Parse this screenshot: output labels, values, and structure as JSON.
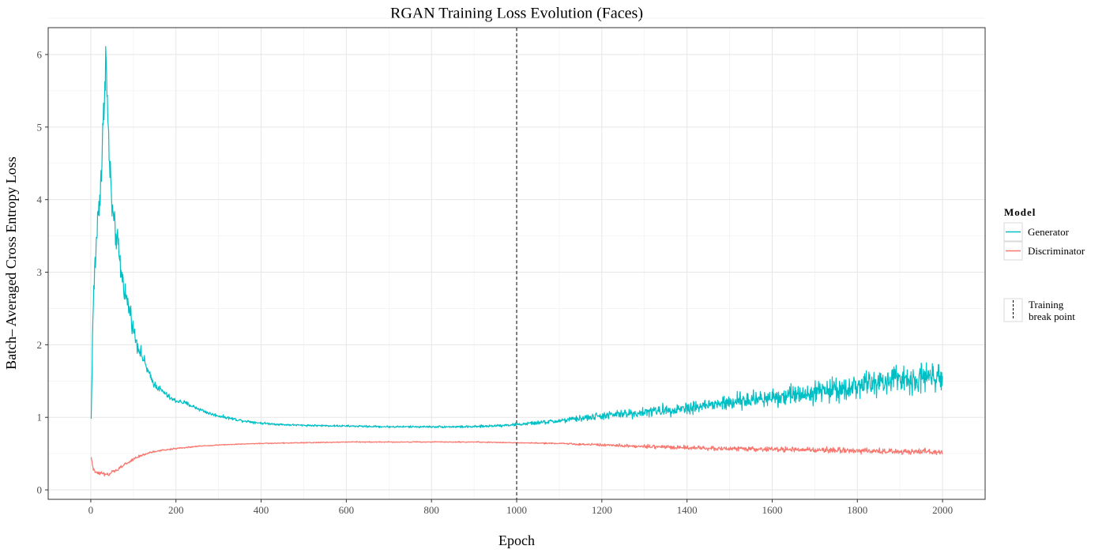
{
  "chart_data": {
    "type": "line",
    "title": "RGAN Training Loss Evolution (Faces)",
    "xlabel": "Epoch",
    "ylabel": "Batch– Averaged Cross Entropy Loss",
    "xlim": [
      -100,
      2100
    ],
    "ylim": [
      -0.13,
      6.37
    ],
    "x_ticks": [
      0,
      200,
      400,
      600,
      800,
      1000,
      1200,
      1400,
      1600,
      1800,
      2000
    ],
    "y_ticks": [
      0,
      1,
      2,
      3,
      4,
      5,
      6
    ],
    "grid": true,
    "legend_title": "Model",
    "legend_position": "right",
    "vline": {
      "x": 1000,
      "style": "dashed",
      "label_lines": [
        "Training",
        "break point"
      ]
    },
    "series": [
      {
        "name": "Generator",
        "color": "#00BFC4",
        "x": [
          1,
          5,
          10,
          15,
          20,
          25,
          30,
          35,
          40,
          45,
          50,
          55,
          60,
          65,
          70,
          75,
          80,
          85,
          90,
          95,
          100,
          110,
          120,
          130,
          140,
          150,
          160,
          170,
          180,
          190,
          200,
          220,
          240,
          260,
          280,
          300,
          350,
          400,
          450,
          500,
          600,
          700,
          800,
          900,
          1000,
          1100,
          1200,
          1300,
          1400,
          1500,
          1600,
          1700,
          1800,
          1900,
          1950,
          2000
        ],
        "values": [
          0.98,
          2.4,
          3.1,
          3.6,
          4.0,
          4.4,
          5.1,
          6.05,
          5.1,
          4.4,
          3.9,
          3.6,
          3.5,
          3.3,
          3.05,
          2.9,
          2.75,
          2.6,
          2.5,
          2.4,
          2.2,
          2.0,
          1.85,
          1.7,
          1.55,
          1.45,
          1.4,
          1.35,
          1.3,
          1.25,
          1.23,
          1.2,
          1.15,
          1.1,
          1.05,
          1.02,
          0.96,
          0.92,
          0.9,
          0.89,
          0.88,
          0.87,
          0.87,
          0.87,
          0.9,
          0.95,
          1.02,
          1.07,
          1.13,
          1.2,
          1.28,
          1.35,
          1.43,
          1.52,
          1.55,
          1.6
        ],
        "noise_amplitude": [
          0,
          0.3,
          0.4,
          0.4,
          0.45,
          0.5,
          0.5,
          0.45,
          0.45,
          0.4,
          0.4,
          0.35,
          0.3,
          0.3,
          0.3,
          0.25,
          0.25,
          0.22,
          0.2,
          0.2,
          0.18,
          0.15,
          0.13,
          0.11,
          0.09,
          0.08,
          0.07,
          0.06,
          0.06,
          0.05,
          0.05,
          0.05,
          0.04,
          0.04,
          0.035,
          0.03,
          0.03,
          0.025,
          0.02,
          0.02,
          0.02,
          0.02,
          0.02,
          0.025,
          0.03,
          0.05,
          0.08,
          0.1,
          0.13,
          0.16,
          0.2,
          0.22,
          0.26,
          0.3,
          0.32,
          0.3
        ]
      },
      {
        "name": "Discriminator",
        "color": "#F8766D",
        "x": [
          1,
          5,
          10,
          20,
          30,
          40,
          50,
          60,
          80,
          100,
          120,
          150,
          200,
          250,
          300,
          400,
          500,
          600,
          700,
          800,
          900,
          1000,
          1100,
          1200,
          1300,
          1400,
          1500,
          1600,
          1700,
          1800,
          1900,
          2000
        ],
        "values": [
          0.45,
          0.3,
          0.25,
          0.24,
          0.22,
          0.2,
          0.24,
          0.27,
          0.35,
          0.42,
          0.48,
          0.53,
          0.57,
          0.6,
          0.62,
          0.64,
          0.65,
          0.66,
          0.66,
          0.66,
          0.66,
          0.65,
          0.64,
          0.62,
          0.6,
          0.58,
          0.57,
          0.56,
          0.55,
          0.54,
          0.53,
          0.52
        ],
        "noise_amplitude": [
          0,
          0.05,
          0.04,
          0.04,
          0.04,
          0.04,
          0.04,
          0.04,
          0.03,
          0.03,
          0.025,
          0.02,
          0.015,
          0.012,
          0.01,
          0.01,
          0.01,
          0.01,
          0.01,
          0.01,
          0.01,
          0.01,
          0.015,
          0.025,
          0.035,
          0.04,
          0.045,
          0.05,
          0.055,
          0.06,
          0.06,
          0.06
        ]
      }
    ]
  }
}
